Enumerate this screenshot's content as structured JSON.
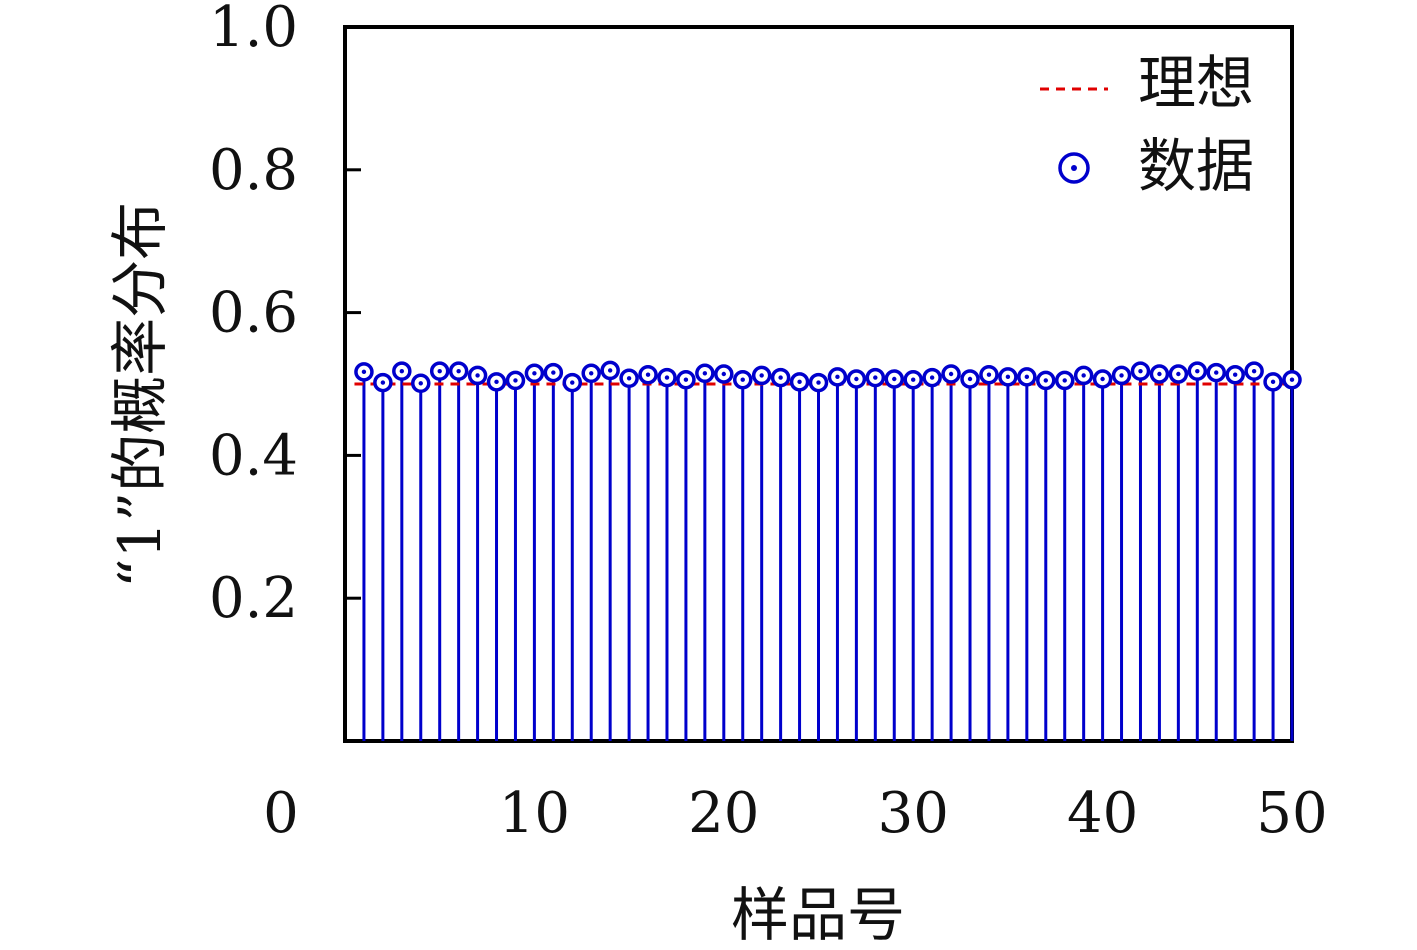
{
  "chart_data": {
    "type": "scatter",
    "style": "stem",
    "xlabel": "样品号",
    "ylabel": "“1”的概率分布",
    "xlim": [
      0,
      50
    ],
    "ylim": [
      0,
      1.0
    ],
    "x_ticks": [
      0,
      10,
      20,
      30,
      40,
      50
    ],
    "x_tick_labels": [
      "0",
      "10",
      "20",
      "30",
      "40",
      "50"
    ],
    "y_ticks": [
      0.2,
      0.4,
      0.6,
      0.8,
      1.0
    ],
    "y_tick_labels": [
      "0.2",
      "0.4",
      "0.6",
      "0.8",
      "1.0"
    ],
    "grid": false,
    "legend_position": "top-right",
    "legend": [
      {
        "label": "理想",
        "style": "dashed-line",
        "color": "#e00000"
      },
      {
        "label": "数据",
        "style": "circle-dot-marker",
        "color": "#0000cc"
      }
    ],
    "ideal": {
      "name": "理想",
      "y": 0.5,
      "color": "#e00000"
    },
    "series": [
      {
        "name": "数据",
        "color": "#0000cc",
        "x": [
          1,
          2,
          3,
          4,
          5,
          6,
          7,
          8,
          9,
          10,
          11,
          12,
          13,
          14,
          15,
          16,
          17,
          18,
          19,
          20,
          21,
          22,
          23,
          24,
          25,
          26,
          27,
          28,
          29,
          30,
          31,
          32,
          33,
          34,
          35,
          36,
          37,
          38,
          39,
          40,
          41,
          42,
          43,
          44,
          45,
          46,
          47,
          48,
          49,
          50
        ],
        "values": [
          0.517,
          0.502,
          0.518,
          0.501,
          0.518,
          0.518,
          0.512,
          0.503,
          0.505,
          0.515,
          0.516,
          0.502,
          0.515,
          0.519,
          0.508,
          0.513,
          0.509,
          0.506,
          0.515,
          0.514,
          0.506,
          0.512,
          0.509,
          0.503,
          0.502,
          0.51,
          0.507,
          0.509,
          0.507,
          0.506,
          0.509,
          0.514,
          0.507,
          0.513,
          0.51,
          0.51,
          0.505,
          0.505,
          0.512,
          0.507,
          0.512,
          0.518,
          0.514,
          0.514,
          0.518,
          0.516,
          0.513,
          0.518,
          0.503,
          0.506
        ]
      }
    ]
  }
}
